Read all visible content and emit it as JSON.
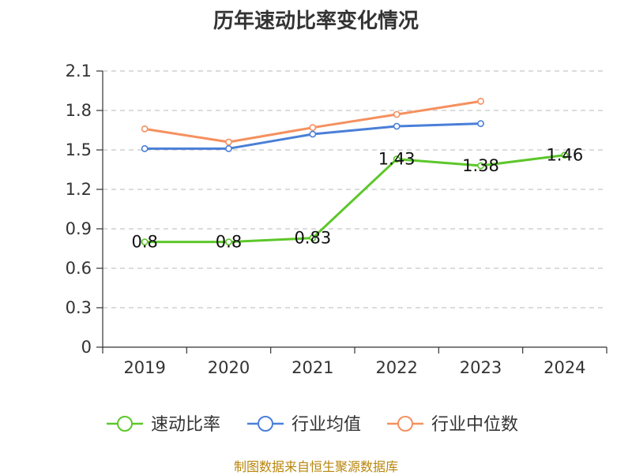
{
  "chart_data": {
    "type": "line",
    "title": "历年速动比率变化情况",
    "categories": [
      "2019",
      "2020",
      "2021",
      "2022",
      "2023",
      "2024"
    ],
    "yticks": [
      "0",
      "0.3",
      "0.6",
      "0.9",
      "1.2",
      "1.5",
      "1.8",
      "2.1"
    ],
    "ylim": [
      0,
      2.1
    ],
    "grid": true,
    "legend_position": "bottom",
    "series": [
      {
        "name": "速动比率",
        "color": "#5cc72a",
        "values": [
          0.8,
          0.8,
          0.83,
          1.43,
          1.38,
          1.46
        ],
        "labels": [
          "0.8",
          "0.8",
          "0.83",
          "1.43",
          "1.38",
          "1.46"
        ]
      },
      {
        "name": "行业均值",
        "color": "#4a7fd8",
        "values": [
          1.51,
          1.51,
          1.62,
          1.68,
          1.7,
          null
        ]
      },
      {
        "name": "行业中位数",
        "color": "#f5905e",
        "values": [
          1.66,
          1.56,
          1.67,
          1.77,
          1.87,
          null
        ]
      }
    ]
  },
  "source_text": "制图数据来自恒生聚源数据库"
}
